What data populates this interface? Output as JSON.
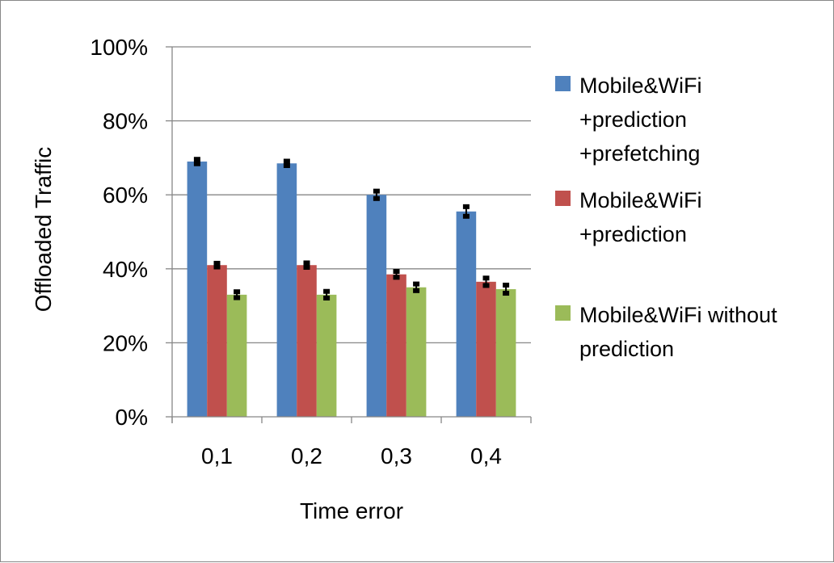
{
  "chart_data": {
    "type": "bar",
    "title": "",
    "xlabel": "Time error",
    "ylabel": "Offloaded Traffic",
    "ylim": [
      0,
      100
    ],
    "y_ticks": [
      "0%",
      "20%",
      "40%",
      "60%",
      "80%",
      "100%"
    ],
    "categories": [
      "0,1",
      "0,2",
      "0,3",
      "0,4"
    ],
    "grid": true,
    "legend_position": "right",
    "series": [
      {
        "name": "Mobile&WiFi +prediction +prefetching",
        "legend_lines": [
          "Mobile&WiFi",
          "+prediction",
          "+prefetching"
        ],
        "color": "#4f81bd",
        "values": [
          69,
          68.5,
          60,
          55.5
        ],
        "error": [
          0.6,
          0.6,
          1.0,
          1.3
        ]
      },
      {
        "name": "Mobile&WiFi +prediction",
        "legend_lines": [
          "Mobile&WiFi",
          "+prediction"
        ],
        "color": "#c0504d",
        "values": [
          41,
          41,
          38.5,
          36.5
        ],
        "error": [
          0.5,
          0.6,
          0.8,
          1.0
        ]
      },
      {
        "name": "Mobile&WiFi without prediction",
        "legend_lines": [
          "Mobile&WiFi without",
          "prediction"
        ],
        "color": "#9bbb59",
        "values": [
          33,
          33,
          35,
          34.5
        ],
        "error": [
          0.8,
          0.9,
          0.9,
          1.1
        ]
      }
    ]
  }
}
